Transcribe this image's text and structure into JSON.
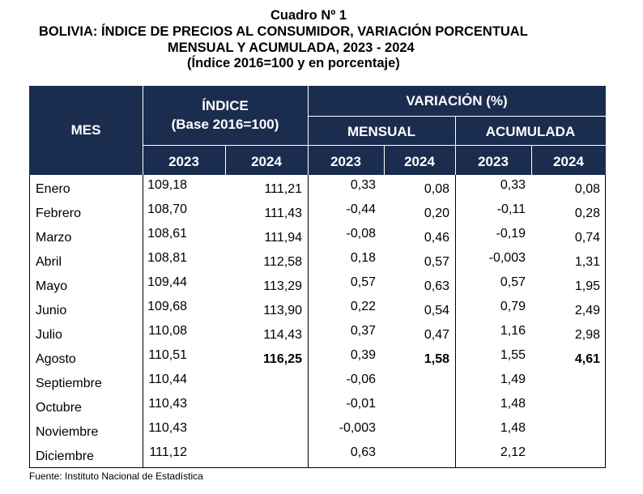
{
  "title": {
    "line1": "Cuadro Nº 1",
    "line2": "BOLIVIA: ÍNDICE DE PRECIOS AL CONSUMIDOR, VARIACIÓN PORCENTUAL",
    "line3": "MENSUAL Y ACUMULADA, 2023 - 2024",
    "line4": "(Índice 2016=100 y en porcentaje)"
  },
  "header": {
    "mes": "MES",
    "indice": "ÍNDICE",
    "base": "(Base 2016=100)",
    "variacion": "VARIACIÓN (%)",
    "mensual": "MENSUAL",
    "acumulada": "ACUMULADA",
    "years": [
      "2023",
      "2024",
      "2023",
      "2024",
      "2023",
      "2024"
    ]
  },
  "rows": [
    {
      "mes": "Enero",
      "i23": "109,18",
      "i24": "111,21",
      "m23": "0,33",
      "m24": "0,08",
      "a23": "0,33",
      "a24": "0,08"
    },
    {
      "mes": "Febrero",
      "i23": "108,70",
      "i24": "111,43",
      "m23": "-0,44",
      "m24": "0,20",
      "a23": "-0,11",
      "a24": "0,28"
    },
    {
      "mes": "Marzo",
      "i23": "108,61",
      "i24": "111,94",
      "m23": "-0,08",
      "m24": "0,46",
      "a23": "-0,19",
      "a24": "0,74"
    },
    {
      "mes": "Abril",
      "i23": "108,81",
      "i24": "112,58",
      "m23": "0,18",
      "m24": "0,57",
      "a23": "-0,003",
      "a24": "1,31"
    },
    {
      "mes": "Mayo",
      "i23": "109,44",
      "i24": "113,29",
      "m23": "0,57",
      "m24": "0,63",
      "a23": "0,57",
      "a24": "1,95"
    },
    {
      "mes": "Junio",
      "i23": "109,68",
      "i24": "113,90",
      "m23": "0,22",
      "m24": "0,54",
      "a23": "0,79",
      "a24": "2,49"
    },
    {
      "mes": "Julio",
      "i23": "110,08",
      "i24": "114,43",
      "m23": "0,37",
      "m24": "0,47",
      "a23": "1,16",
      "a24": "2,98"
    },
    {
      "mes": "Agosto",
      "i23": "110,51",
      "i24": "116,25",
      "m23": "0,39",
      "m24": "1,58",
      "a23": "1,55",
      "a24": "4,61"
    },
    {
      "mes": "Septiembre",
      "i23": "110,44",
      "i24": "",
      "m23": "-0,06",
      "m24": "",
      "a23": "1,49",
      "a24": ""
    },
    {
      "mes": "Octubre",
      "i23": "110,43",
      "i24": "",
      "m23": "-0,01",
      "m24": "",
      "a23": "1,48",
      "a24": ""
    },
    {
      "mes": "Noviembre",
      "i23": "110,43",
      "i24": "",
      "m23": "-0,003",
      "m24": "",
      "a23": "1,48",
      "a24": ""
    },
    {
      "mes": "Diciembre",
      "i23": "111,12",
      "i24": "",
      "m23": "0,63",
      "m24": "",
      "a23": "2,12",
      "a24": ""
    }
  ],
  "colors": {
    "header_bg": "#1b2d4e",
    "header_text": "#ffffff"
  },
  "source": "Fuente: Instituto Nacional de Estadística"
}
